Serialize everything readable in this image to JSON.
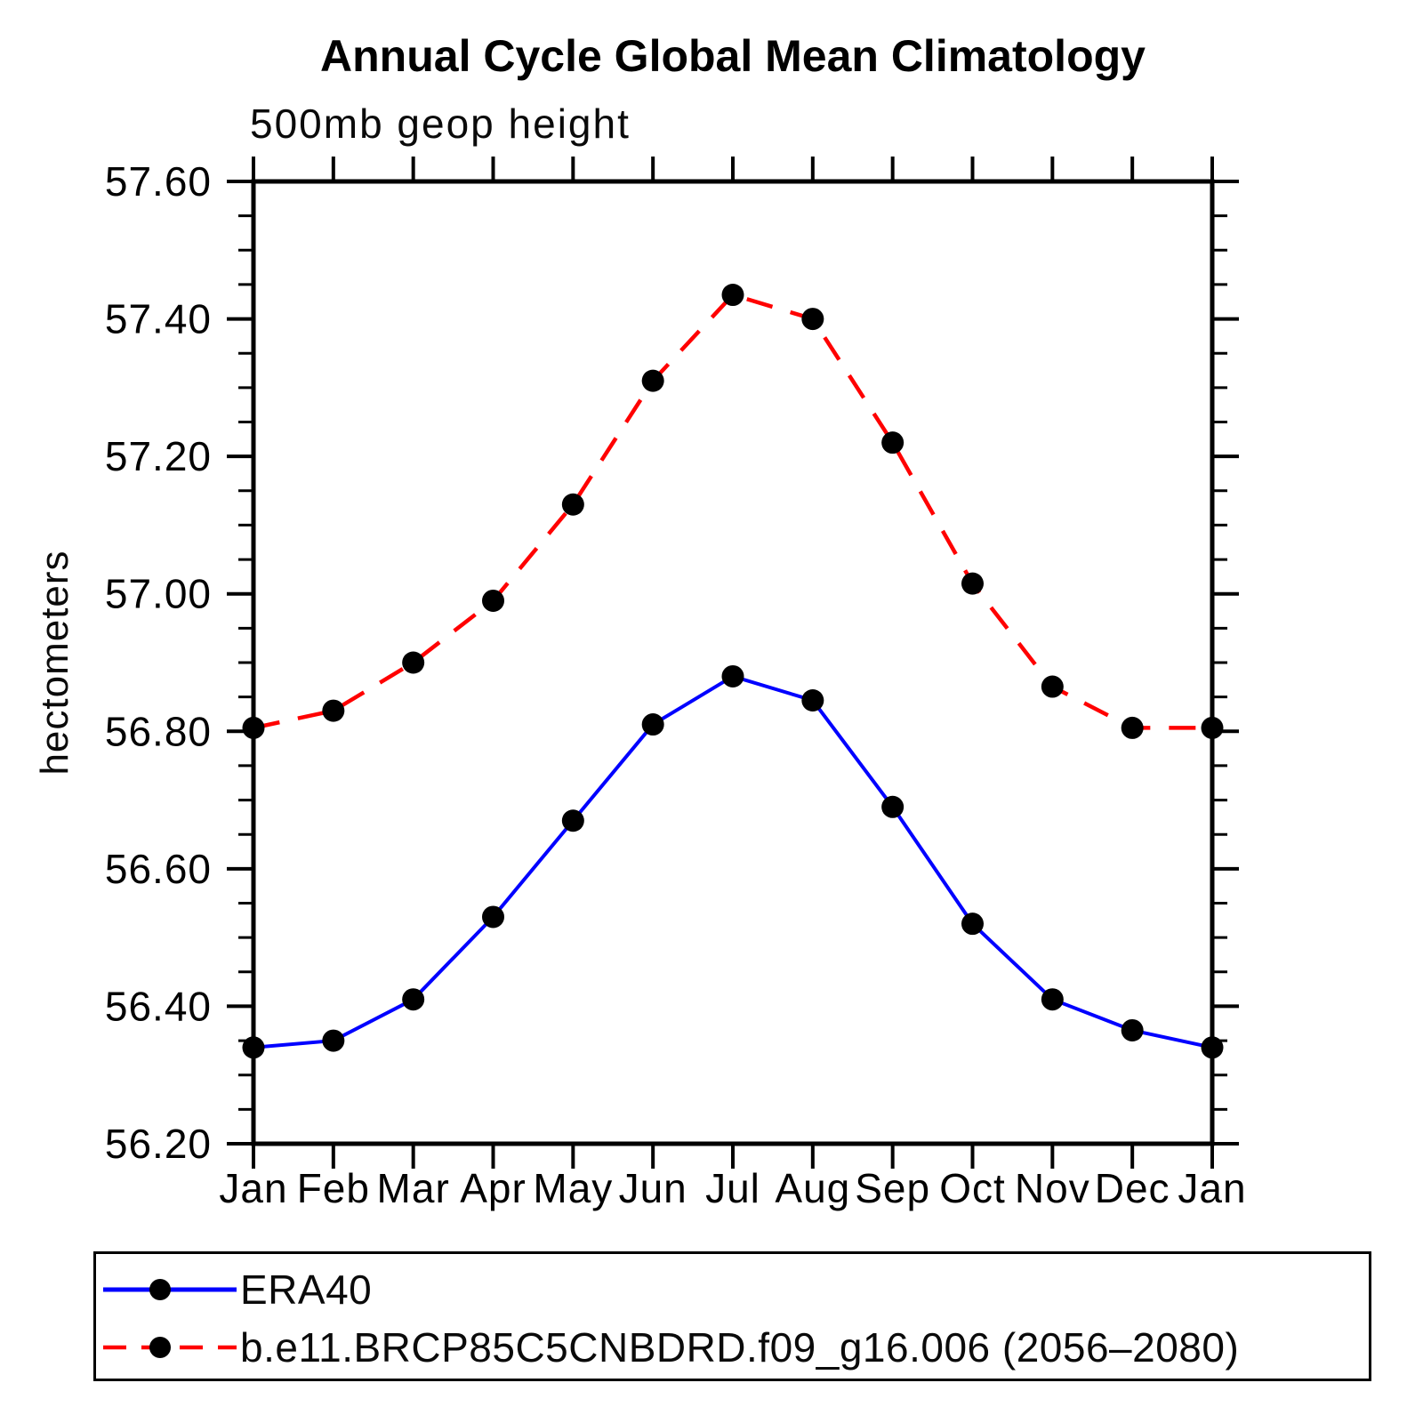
{
  "chart_data": {
    "type": "line",
    "title": "Annual Cycle Global Mean Climatology",
    "subtitle": "500mb geop height",
    "ylabel": "hectometers",
    "categories": [
      "Jan",
      "Feb",
      "Mar",
      "Apr",
      "May",
      "Jun",
      "Jul",
      "Aug",
      "Sep",
      "Oct",
      "Nov",
      "Dec",
      "Jan"
    ],
    "ylim": [
      56.2,
      57.6
    ],
    "ytick_step": 0.2,
    "ytick_minor_step": 0.05,
    "ytick_labels": [
      "56.20",
      "56.40",
      "56.60",
      "56.80",
      "57.00",
      "57.20",
      "57.40",
      "57.60"
    ],
    "grid": false,
    "legend_position": "bottom-left-box",
    "axis_color": "#000000",
    "text_color": "#000000",
    "series": [
      {
        "name": "ERA40",
        "color": "#0000ff",
        "line_style": "solid",
        "marker": "circle",
        "marker_color": "#000000",
        "values": [
          56.34,
          56.35,
          56.41,
          56.53,
          56.67,
          56.81,
          56.88,
          56.845,
          56.69,
          56.52,
          56.41,
          56.365,
          56.34
        ]
      },
      {
        "name": "b.e11.BRCP85C5CNBDRD.f09_g16.006 (2056–2080)",
        "color": "#ff0000",
        "line_style": "dashed",
        "marker": "circle",
        "marker_color": "#000000",
        "values": [
          56.805,
          56.83,
          56.9,
          56.99,
          57.13,
          57.31,
          57.435,
          57.4,
          57.22,
          57.015,
          56.865,
          56.805,
          56.805
        ]
      }
    ]
  }
}
